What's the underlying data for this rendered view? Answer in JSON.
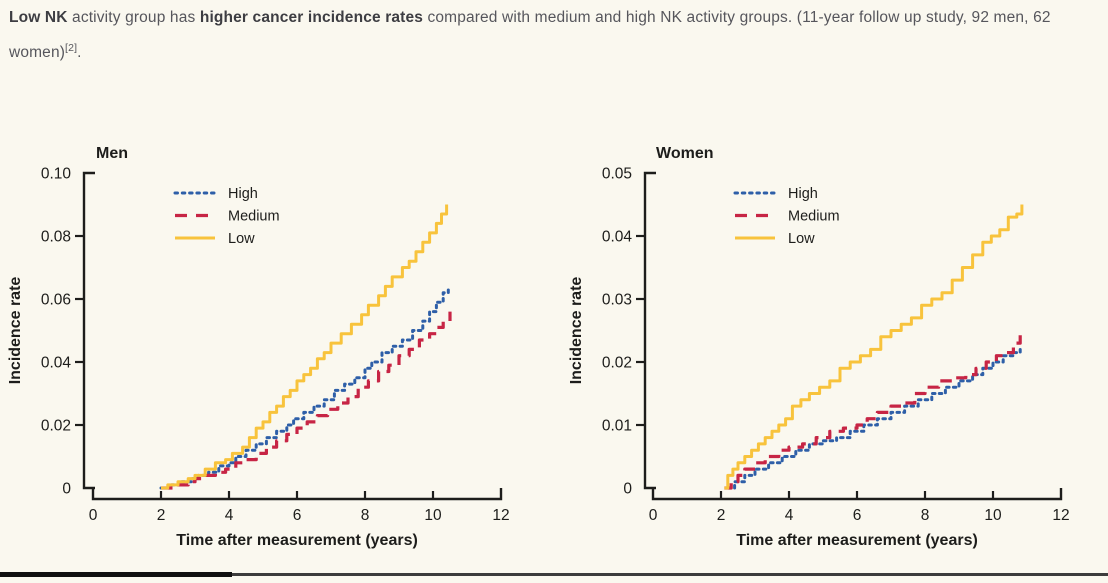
{
  "page_background": "#faf8ef",
  "caption": {
    "segments": [
      {
        "text": "Low NK",
        "bold": true
      },
      {
        "text": " activity group has ",
        "bold": false
      },
      {
        "text": "higher cancer incidence rates",
        "bold": true
      },
      {
        "text": " compared with medium and high NK activity groups. (11-year follow up study, 92 men, 62 women)",
        "bold": false
      }
    ],
    "superscript": "[2]",
    "trailing_text": "."
  },
  "colors": {
    "high": "#2e5fa8",
    "medium": "#c72545",
    "low": "#f8c33c",
    "axis": "#1d1d1b",
    "tick_label": "#1d1d1b"
  },
  "chart_data": [
    {
      "type": "line",
      "step": true,
      "title": "Men",
      "xlabel": "Time after measurement (years)",
      "ylabel": "Incidence rate",
      "xlim": [
        0,
        12
      ],
      "ylim": [
        0,
        0.1
      ],
      "xticks": [
        0,
        2,
        4,
        6,
        8,
        10,
        12
      ],
      "xtick_labels": [
        "0",
        "2",
        "4",
        "6",
        "8",
        "10",
        "12"
      ],
      "yticks": [
        0,
        0.02,
        0.04,
        0.06,
        0.08,
        0.1
      ],
      "ytick_labels": [
        "0",
        "0.02",
        "0.04",
        "0.06",
        "0.08",
        "0.10"
      ],
      "grid": false,
      "legend_position": "upper-left-inside",
      "series": [
        {
          "name": "High",
          "style": "dotted",
          "color_key": "high",
          "points": [
            [
              2,
              0
            ],
            [
              2.3,
              0.001
            ],
            [
              2.6,
              0.002
            ],
            [
              2.9,
              0.003
            ],
            [
              3.1,
              0.004
            ],
            [
              3.4,
              0.005
            ],
            [
              3.7,
              0.007
            ],
            [
              4.0,
              0.008
            ],
            [
              4.2,
              0.01
            ],
            [
              4.5,
              0.012
            ],
            [
              4.8,
              0.014
            ],
            [
              5.1,
              0.016
            ],
            [
              5.4,
              0.018
            ],
            [
              5.7,
              0.02
            ],
            [
              5.9,
              0.022
            ],
            [
              6.2,
              0.024
            ],
            [
              6.5,
              0.026
            ],
            [
              6.8,
              0.028
            ],
            [
              7.1,
              0.031
            ],
            [
              7.4,
              0.033
            ],
            [
              7.7,
              0.035
            ],
            [
              8.0,
              0.038
            ],
            [
              8.2,
              0.04
            ],
            [
              8.5,
              0.043
            ],
            [
              8.8,
              0.045
            ],
            [
              9.1,
              0.047
            ],
            [
              9.4,
              0.05
            ],
            [
              9.7,
              0.053
            ],
            [
              9.9,
              0.056
            ],
            [
              10.1,
              0.059
            ],
            [
              10.3,
              0.062
            ],
            [
              10.45,
              0.064
            ]
          ]
        },
        {
          "name": "Medium",
          "style": "dashed",
          "color_key": "medium",
          "points": [
            [
              2,
              0
            ],
            [
              2.4,
              0.001
            ],
            [
              2.8,
              0.002
            ],
            [
              3.0,
              0.003
            ],
            [
              3.3,
              0.004
            ],
            [
              3.6,
              0.005
            ],
            [
              3.9,
              0.006
            ],
            [
              4.2,
              0.008
            ],
            [
              4.5,
              0.009
            ],
            [
              4.8,
              0.011
            ],
            [
              5.1,
              0.013
            ],
            [
              5.4,
              0.015
            ],
            [
              5.7,
              0.017
            ],
            [
              6.0,
              0.019
            ],
            [
              6.3,
              0.021
            ],
            [
              6.6,
              0.023
            ],
            [
              6.9,
              0.025
            ],
            [
              7.2,
              0.027
            ],
            [
              7.5,
              0.029
            ],
            [
              7.8,
              0.032
            ],
            [
              8.1,
              0.034
            ],
            [
              8.4,
              0.037
            ],
            [
              8.7,
              0.039
            ],
            [
              9.0,
              0.042
            ],
            [
              9.3,
              0.044
            ],
            [
              9.6,
              0.047
            ],
            [
              9.9,
              0.049
            ],
            [
              10.1,
              0.051
            ],
            [
              10.3,
              0.053
            ],
            [
              10.5,
              0.056
            ]
          ]
        },
        {
          "name": "Low",
          "style": "solid",
          "color_key": "low",
          "points": [
            [
              2,
              0
            ],
            [
              2.2,
              0.001
            ],
            [
              2.5,
              0.002
            ],
            [
              2.8,
              0.003
            ],
            [
              3.0,
              0.004
            ],
            [
              3.3,
              0.006
            ],
            [
              3.6,
              0.008
            ],
            [
              3.9,
              0.009
            ],
            [
              4.1,
              0.011
            ],
            [
              4.4,
              0.013
            ],
            [
              4.6,
              0.016
            ],
            [
              4.8,
              0.019
            ],
            [
              5.0,
              0.021
            ],
            [
              5.2,
              0.024
            ],
            [
              5.4,
              0.026
            ],
            [
              5.6,
              0.029
            ],
            [
              5.8,
              0.031
            ],
            [
              6.0,
              0.034
            ],
            [
              6.2,
              0.036
            ],
            [
              6.4,
              0.038
            ],
            [
              6.6,
              0.041
            ],
            [
              6.8,
              0.043
            ],
            [
              7.0,
              0.046
            ],
            [
              7.3,
              0.049
            ],
            [
              7.6,
              0.052
            ],
            [
              7.9,
              0.055
            ],
            [
              8.1,
              0.058
            ],
            [
              8.4,
              0.061
            ],
            [
              8.6,
              0.064
            ],
            [
              8.8,
              0.067
            ],
            [
              9.1,
              0.07
            ],
            [
              9.3,
              0.072
            ],
            [
              9.5,
              0.075
            ],
            [
              9.7,
              0.078
            ],
            [
              9.9,
              0.081
            ],
            [
              10.1,
              0.084
            ],
            [
              10.25,
              0.087
            ],
            [
              10.4,
              0.09
            ]
          ]
        }
      ]
    },
    {
      "type": "line",
      "step": true,
      "title": "Women",
      "xlabel": "Time after measurement (years)",
      "ylabel": "Incidence rate",
      "xlim": [
        0,
        12
      ],
      "ylim": [
        0,
        0.05
      ],
      "xticks": [
        0,
        2,
        4,
        6,
        8,
        10,
        12
      ],
      "xtick_labels": [
        "0",
        "2",
        "4",
        "6",
        "8",
        "10",
        "12"
      ],
      "yticks": [
        0,
        0.01,
        0.02,
        0.03,
        0.04,
        0.05
      ],
      "ytick_labels": [
        "0",
        "0.01",
        "0.02",
        "0.03",
        "0.04",
        "0.05"
      ],
      "grid": false,
      "legend_position": "upper-left-inside",
      "series": [
        {
          "name": "High",
          "style": "dotted",
          "color_key": "high",
          "points": [
            [
              2.2,
              0
            ],
            [
              2.4,
              0.001
            ],
            [
              2.7,
              0.002
            ],
            [
              3.0,
              0.003
            ],
            [
              3.4,
              0.004
            ],
            [
              3.8,
              0.005
            ],
            [
              4.2,
              0.006
            ],
            [
              4.6,
              0.007
            ],
            [
              5.0,
              0.0075
            ],
            [
              5.4,
              0.008
            ],
            [
              5.8,
              0.009
            ],
            [
              6.2,
              0.01
            ],
            [
              6.6,
              0.011
            ],
            [
              7.0,
              0.012
            ],
            [
              7.4,
              0.013
            ],
            [
              7.8,
              0.014
            ],
            [
              8.2,
              0.015
            ],
            [
              8.6,
              0.016
            ],
            [
              9.0,
              0.017
            ],
            [
              9.4,
              0.018
            ],
            [
              9.7,
              0.019
            ],
            [
              10.0,
              0.02
            ],
            [
              10.3,
              0.021
            ],
            [
              10.6,
              0.0215
            ],
            [
              10.8,
              0.0225
            ]
          ]
        },
        {
          "name": "Medium",
          "style": "dashed",
          "color_key": "medium",
          "points": [
            [
              2.1,
              0
            ],
            [
              2.3,
              0.001
            ],
            [
              2.5,
              0.002
            ],
            [
              2.7,
              0.003
            ],
            [
              3.0,
              0.004
            ],
            [
              3.3,
              0.005
            ],
            [
              3.7,
              0.006
            ],
            [
              4.0,
              0.0065
            ],
            [
              4.4,
              0.007
            ],
            [
              4.8,
              0.008
            ],
            [
              5.2,
              0.009
            ],
            [
              5.6,
              0.0095
            ],
            [
              6.0,
              0.01
            ],
            [
              6.3,
              0.011
            ],
            [
              6.6,
              0.012
            ],
            [
              7.0,
              0.013
            ],
            [
              7.4,
              0.0135
            ],
            [
              7.7,
              0.015
            ],
            [
              8.0,
              0.016
            ],
            [
              8.4,
              0.017
            ],
            [
              8.8,
              0.0175
            ],
            [
              9.2,
              0.018
            ],
            [
              9.5,
              0.019
            ],
            [
              9.8,
              0.02
            ],
            [
              10.1,
              0.021
            ],
            [
              10.4,
              0.0215
            ],
            [
              10.6,
              0.023
            ],
            [
              10.8,
              0.0245
            ]
          ]
        },
        {
          "name": "Low",
          "style": "solid",
          "color_key": "low",
          "points": [
            [
              2.1,
              0
            ],
            [
              2.2,
              0.002
            ],
            [
              2.35,
              0.003
            ],
            [
              2.5,
              0.004
            ],
            [
              2.7,
              0.005
            ],
            [
              2.9,
              0.006
            ],
            [
              3.1,
              0.007
            ],
            [
              3.3,
              0.008
            ],
            [
              3.5,
              0.009
            ],
            [
              3.7,
              0.01
            ],
            [
              3.9,
              0.011
            ],
            [
              4.1,
              0.013
            ],
            [
              4.35,
              0.014
            ],
            [
              4.6,
              0.015
            ],
            [
              4.9,
              0.016
            ],
            [
              5.2,
              0.017
            ],
            [
              5.5,
              0.019
            ],
            [
              5.8,
              0.02
            ],
            [
              6.1,
              0.021
            ],
            [
              6.4,
              0.022
            ],
            [
              6.7,
              0.024
            ],
            [
              7.0,
              0.025
            ],
            [
              7.3,
              0.026
            ],
            [
              7.6,
              0.027
            ],
            [
              7.9,
              0.029
            ],
            [
              8.2,
              0.03
            ],
            [
              8.5,
              0.031
            ],
            [
              8.8,
              0.033
            ],
            [
              9.1,
              0.035
            ],
            [
              9.4,
              0.037
            ],
            [
              9.7,
              0.039
            ],
            [
              9.95,
              0.04
            ],
            [
              10.2,
              0.041
            ],
            [
              10.45,
              0.043
            ],
            [
              10.7,
              0.0435
            ],
            [
              10.85,
              0.045
            ]
          ]
        }
      ]
    }
  ]
}
